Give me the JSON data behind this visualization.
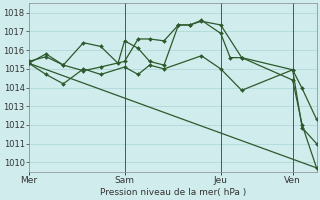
{
  "background_color": "#d0ecec",
  "grid_color": "#b0d8d8",
  "line_color": "#2d5a2d",
  "title": "Pression niveau de la mer( hPa )",
  "ylim": [
    1009.5,
    1018.5
  ],
  "yticks": [
    1010,
    1011,
    1012,
    1013,
    1014,
    1015,
    1016,
    1017,
    1018
  ],
  "xtick_labels": [
    "Mer",
    "Sam",
    "Jeu",
    "Ven"
  ],
  "xtick_positions": [
    0.0,
    0.333,
    0.667,
    0.917
  ],
  "vlines": [
    0.333,
    0.667,
    0.917
  ],
  "series": [
    {
      "x": [
        0.0,
        1.0
      ],
      "y": [
        1015.3,
        1009.7
      ],
      "marker": null
    },
    {
      "x": [
        0.0,
        0.06,
        0.12,
        0.19,
        0.25,
        0.31,
        0.333,
        0.38,
        0.42,
        0.47,
        0.52,
        0.56,
        0.6,
        0.667,
        0.7,
        0.74,
        0.917,
        0.95,
        1.0
      ],
      "y": [
        1015.3,
        1015.8,
        1015.2,
        1016.4,
        1016.2,
        1015.3,
        1016.5,
        1016.1,
        1015.4,
        1015.2,
        1017.35,
        1017.35,
        1017.6,
        1016.9,
        1015.6,
        1015.6,
        1014.4,
        1012.0,
        1009.7
      ],
      "marker": "D"
    },
    {
      "x": [
        0.0,
        0.06,
        0.12,
        0.19,
        0.25,
        0.333,
        0.38,
        0.42,
        0.47,
        0.52,
        0.56,
        0.6,
        0.667,
        0.74,
        0.917,
        0.95,
        1.0
      ],
      "y": [
        1015.4,
        1015.65,
        1015.2,
        1014.9,
        1015.1,
        1015.4,
        1016.6,
        1016.6,
        1016.5,
        1017.35,
        1017.35,
        1017.55,
        1017.35,
        1015.6,
        1014.95,
        1011.85,
        1011.0
      ],
      "marker": "D"
    },
    {
      "x": [
        0.0,
        0.06,
        0.12,
        0.19,
        0.25,
        0.333,
        0.38,
        0.42,
        0.47,
        0.6,
        0.667,
        0.74,
        0.917,
        0.95,
        1.0
      ],
      "y": [
        1015.3,
        1014.7,
        1014.2,
        1015.0,
        1014.7,
        1015.1,
        1014.7,
        1015.2,
        1015.0,
        1015.7,
        1015.0,
        1013.85,
        1014.95,
        1013.95,
        1012.3
      ],
      "marker": "D"
    }
  ],
  "figsize": [
    3.2,
    2.0
  ],
  "dpi": 100
}
